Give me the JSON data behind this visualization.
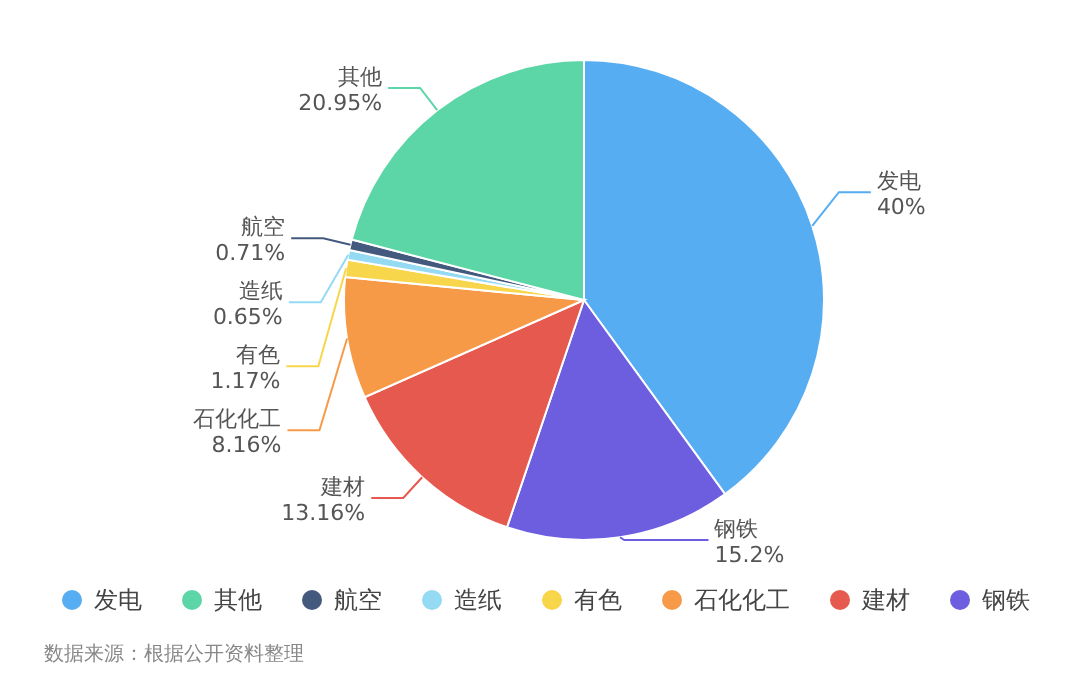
{
  "chart_data": {
    "type": "pie",
    "categories": [
      "发电",
      "其他",
      "航空",
      "造纸",
      "有色",
      "石化化工",
      "建材",
      "钢铁"
    ],
    "values": [
      40,
      20.95,
      0.71,
      0.65,
      1.17,
      8.16,
      13.16,
      15.2
    ],
    "colors": [
      "#56adf2",
      "#5cd6a7",
      "#44597e",
      "#95daf3",
      "#f8d64b",
      "#f79a47",
      "#e5594e",
      "#6d5ee0"
    ],
    "value_labels": [
      "40%",
      "20.95%",
      "0.71%",
      "0.65%",
      "1.17%",
      "8.16%",
      "13.16%",
      "15.2%"
    ],
    "legend": "bottom",
    "annotations": [
      "数据来源：根据公开资料整理"
    ]
  }
}
